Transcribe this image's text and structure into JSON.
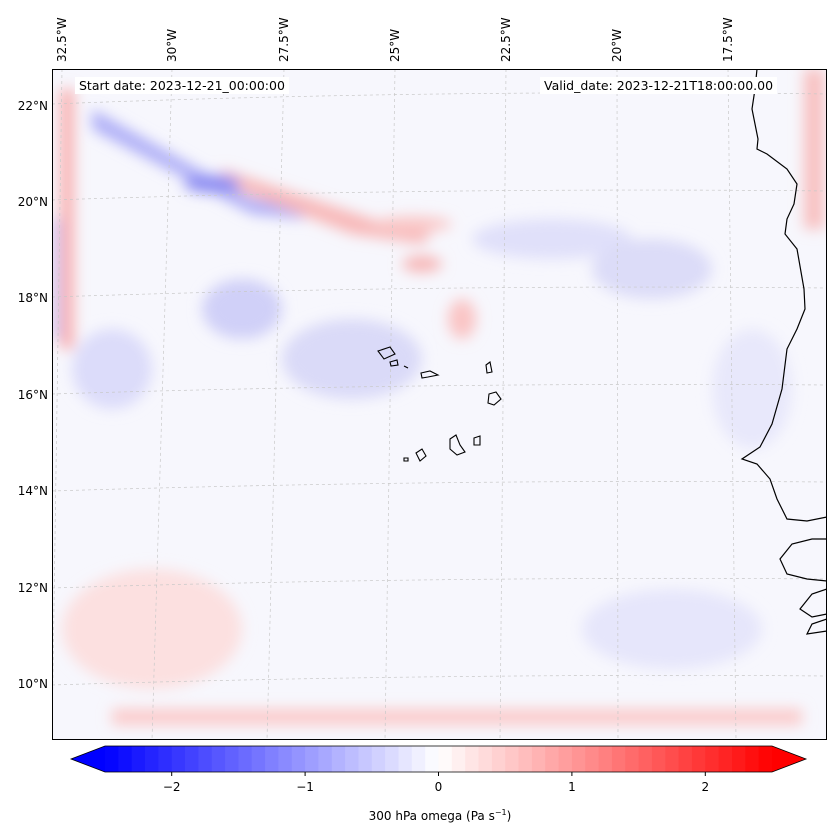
{
  "map": {
    "start_date": "Start date: 2023-12-21_00:00:00",
    "valid_date": "Valid_date: 2023-12-21T18:00:00.00",
    "lon_labels": [
      "32.5°W",
      "30°W",
      "27.5°W",
      "25°W",
      "22.5°W",
      "20°W",
      "17.5°W"
    ],
    "lat_labels": [
      "22°N",
      "20°N",
      "18°N",
      "16°N",
      "14°N",
      "12°N",
      "10°N"
    ]
  },
  "colorbar": {
    "label": "300 hPa omega (Pa s",
    "label_sup": "−1",
    "label_end": ")",
    "ticks": [
      "−2",
      "−1",
      "0",
      "1",
      "2"
    ],
    "tick_values": [
      -2,
      -1,
      0,
      1,
      2
    ],
    "range": [
      -2.5,
      2.5
    ],
    "step": 0.1,
    "colormap": "bwr",
    "low_color": "#0000ff",
    "high_color": "#ff0000"
  }
}
